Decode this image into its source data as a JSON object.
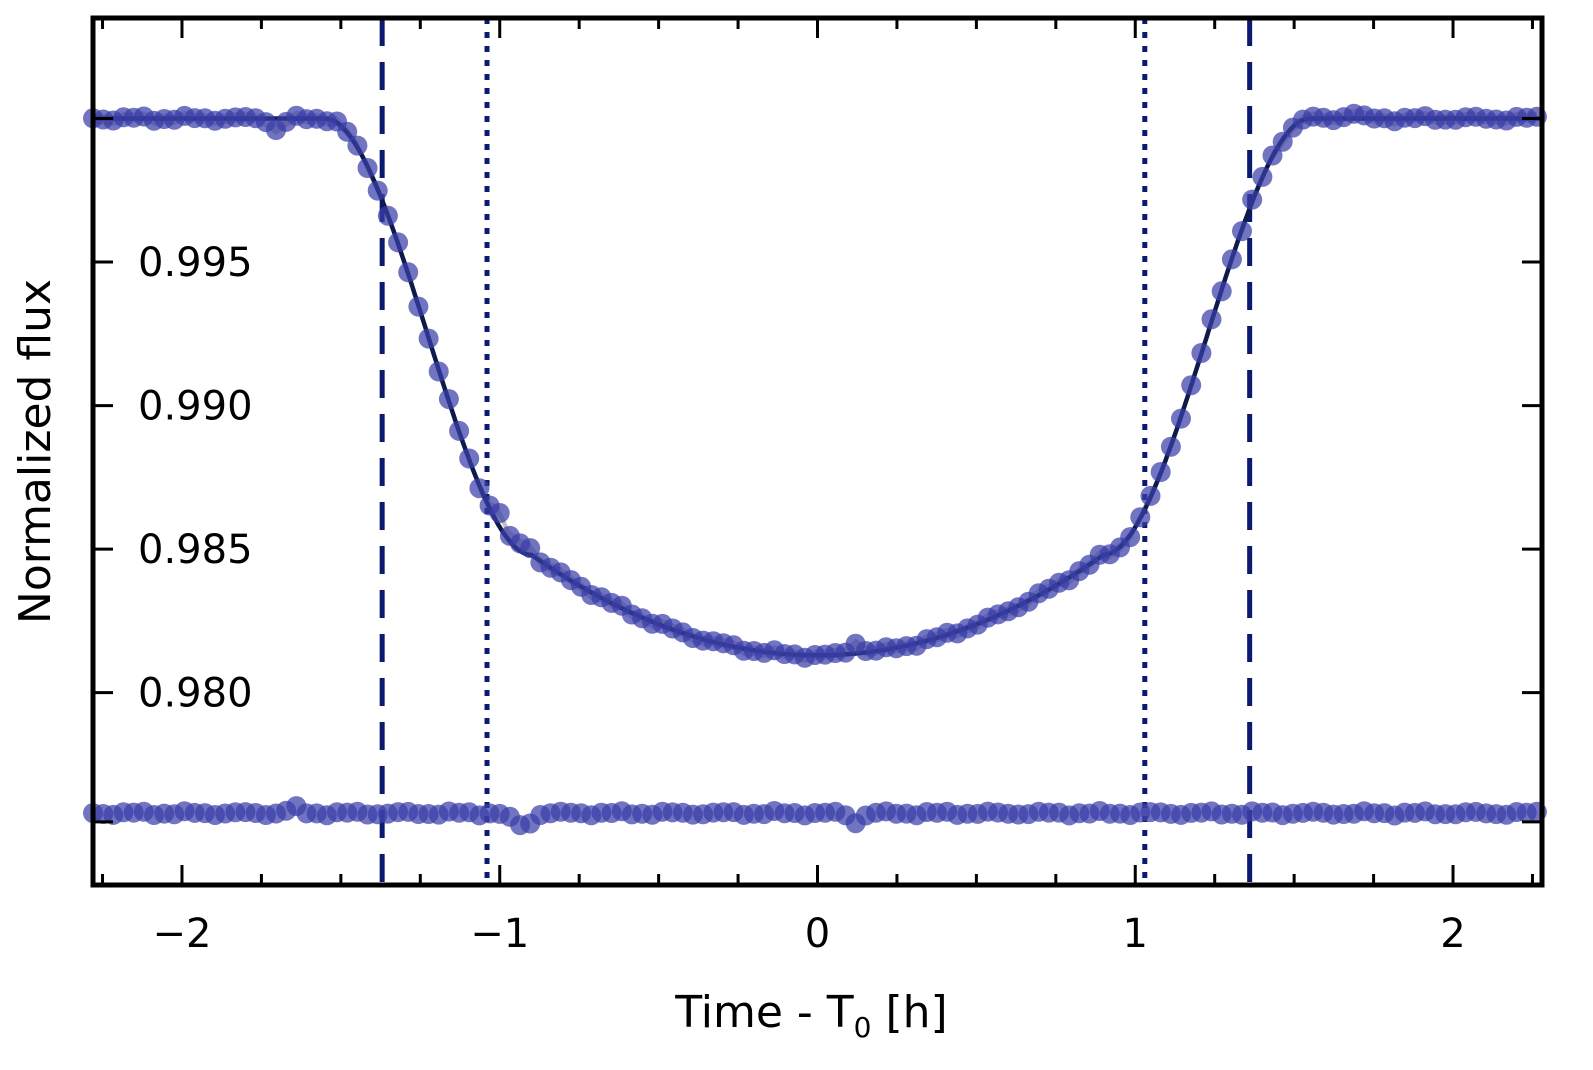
{
  "chart_data": {
    "type": "scatter",
    "title": "",
    "xlabel": "Time - T",
    "xlabel_subscript": "0",
    "xlabel_suffix": " [h]",
    "ylabel": "Normalized flux",
    "xlim": [
      -2.28,
      2.28
    ],
    "ylim": [
      0.9733,
      1.0035
    ],
    "x_ticks": [
      -2,
      -1,
      0,
      1,
      2
    ],
    "x_tick_labels": [
      "−2",
      "−1",
      "0",
      "1",
      "2"
    ],
    "y_ticks": [
      0.98,
      0.985,
      0.99,
      0.995
    ],
    "y_tick_labels": [
      "0.980",
      "0.985",
      "0.990",
      "0.995"
    ],
    "x_minor_tick_step": 0.25,
    "y_extra_ticks": [
      0.9755,
      1.0
    ],
    "grid": false,
    "legend": "none",
    "transit_model": {
      "baseline_flux": 1.0,
      "min_flux": 0.9813,
      "t_egress_start": 0.9,
      "t_egress_end": 1.55,
      "curvature_at_0.9": 0.0035,
      "color": "#0d1a4a"
    },
    "data_series": {
      "name": "",
      "x_start": -2.28,
      "x_end": 2.28,
      "x_step": 0.032,
      "color": "#3a3fa8",
      "band_color": "#b0b0b0",
      "anomalies": [
        {
          "x": -1.7,
          "dy": -0.0004
        },
        {
          "x": -1.0,
          "dy": 0.0005
        },
        {
          "x": -0.92,
          "dy": 0.0004
        },
        {
          "x": 0.12,
          "dy": 0.0004
        },
        {
          "x": 1.68,
          "dy": 0.0002
        }
      ]
    },
    "residuals": {
      "offset_flux": 0.9758,
      "anomalies": [
        {
          "x": -1.65,
          "dy": 0.0002
        },
        {
          "x": -0.92,
          "dy": -0.0005
        },
        {
          "x": -0.96,
          "dy": -0.0002
        },
        {
          "x": 0.12,
          "dy": -0.0003
        }
      ]
    },
    "vertical_lines": [
      {
        "x": -1.37,
        "style": "dashed",
        "color": "#0a1a6e"
      },
      {
        "x": -1.04,
        "style": "dotted",
        "color": "#0a1a6e"
      },
      {
        "x": 1.03,
        "style": "dotted",
        "color": "#0a1a6e"
      },
      {
        "x": 1.36,
        "style": "dashed",
        "color": "#0a1a6e"
      }
    ]
  }
}
